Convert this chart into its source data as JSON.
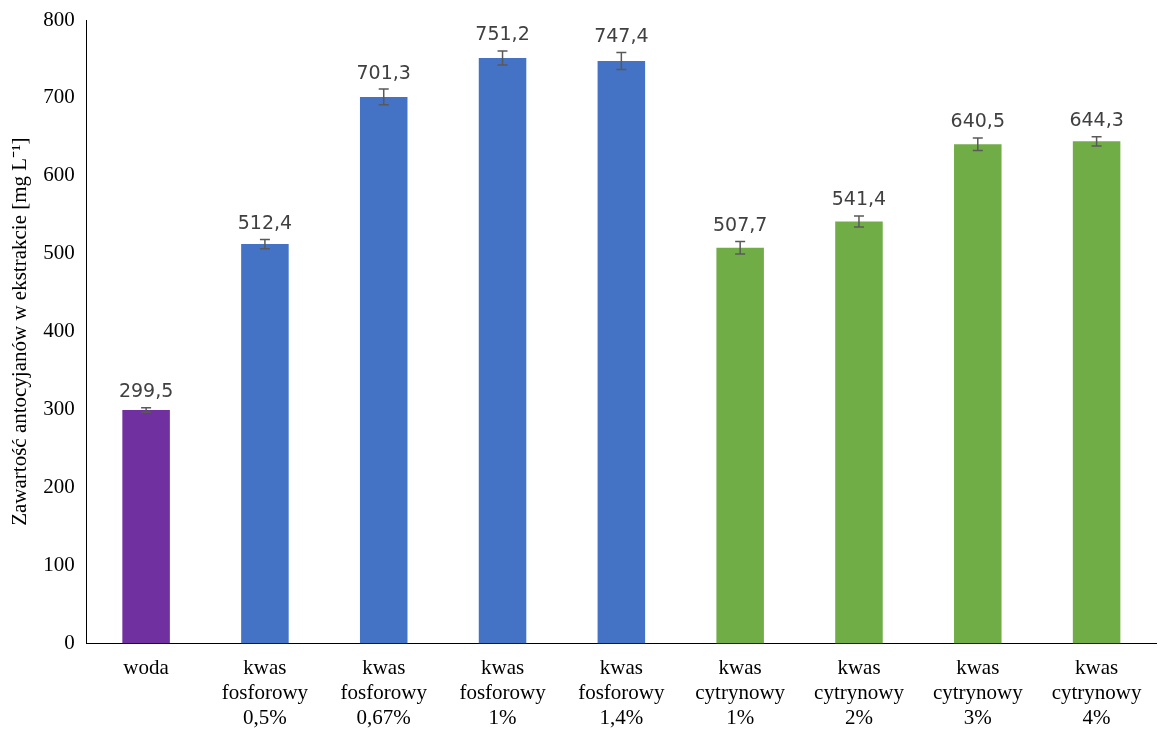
{
  "chart_data": {
    "type": "bar",
    "ylabel": "Zawartość antocyjanów w ekstrakcie [mg L⁻¹]",
    "categories": [
      "woda",
      "kwas fosforowy 0,5%",
      "kwas fosforowy 0,67%",
      "kwas fosforowy 1%",
      "kwas fosforowy 1,4%",
      "kwas cytrynowy 1%",
      "kwas cytrynowy 2%",
      "kwas cytrynowy 3%",
      "kwas cytrynowy 4%"
    ],
    "values": [
      299.5,
      512.4,
      701.3,
      751.2,
      747.4,
      507.7,
      541.4,
      640.5,
      644.3
    ],
    "colors": [
      "#7030a0",
      "#4472c4",
      "#4472c4",
      "#4472c4",
      "#4472c4",
      "#70ad47",
      "#70ad47",
      "#70ad47",
      "#70ad47"
    ],
    "errors": [
      3,
      6,
      10,
      9,
      11,
      8,
      7,
      8,
      6
    ],
    "ylim": [
      0,
      800
    ],
    "yticks": [
      0,
      100,
      200,
      300,
      400,
      500,
      600,
      700,
      800
    ],
    "value_labels": [
      "299,5",
      "512,4",
      "701,3",
      "751,2",
      "747,4",
      "507,7",
      "541,4",
      "640,5",
      "644,3"
    ],
    "grid": false,
    "legend": false
  }
}
